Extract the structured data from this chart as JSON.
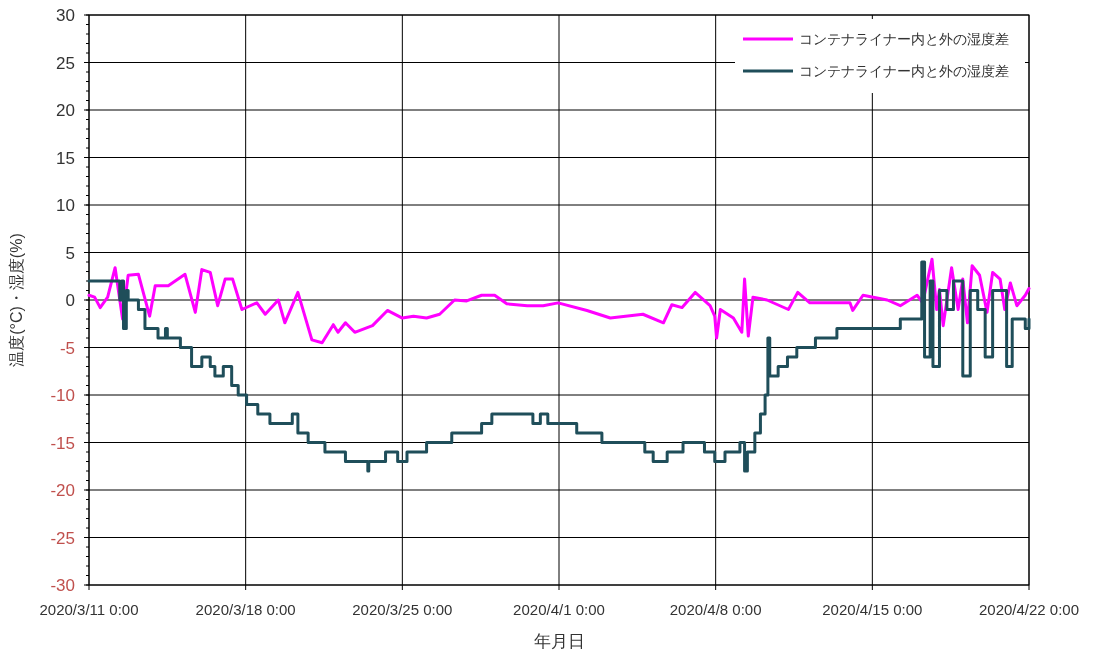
{
  "chart_data": {
    "type": "line",
    "xlabel": "年月日",
    "ylabel": "温度(°C)・湿度(%)",
    "xlim": [
      "2020-03-11T00:00",
      "2020-04-22T00:00"
    ],
    "xticks": [
      {
        "value": "2020-03-11T00:00",
        "label": "2020/3/11 0:00"
      },
      {
        "value": "2020-03-18T00:00",
        "label": "2020/3/18 0:00"
      },
      {
        "value": "2020-03-25T00:00",
        "label": "2020/3/25 0:00"
      },
      {
        "value": "2020-04-01T00:00",
        "label": "2020/4/1 0:00"
      },
      {
        "value": "2020-04-08T00:00",
        "label": "2020/4/8 0:00"
      },
      {
        "value": "2020-04-15T00:00",
        "label": "2020/4/15 0:00"
      },
      {
        "value": "2020-04-22T00:00",
        "label": "2020/4/22 0:00"
      }
    ],
    "ylim": [
      -30,
      30
    ],
    "yticks": [
      -30,
      -25,
      -20,
      -15,
      -10,
      -5,
      0,
      5,
      10,
      15,
      20,
      25,
      30
    ],
    "grid": true,
    "legend": "top right",
    "series": [
      {
        "name": "コンテナライナー内と外の湿度差",
        "type": "line",
        "color": "#ff00ff",
        "x": [
          "2020-03-11T00:00",
          "2020-03-11T06:00",
          "2020-03-11T12:00",
          "2020-03-11T20:00",
          "2020-03-12T04:00",
          "2020-03-12T12:00",
          "2020-03-12T18:00",
          "2020-03-13T05:00",
          "2020-03-13T17:00",
          "2020-03-13T23:00",
          "2020-03-14T13:00",
          "2020-03-15T07:00",
          "2020-03-15T18:00",
          "2020-03-16T01:00",
          "2020-03-16T10:00",
          "2020-03-16T18:00",
          "2020-03-17T02:00",
          "2020-03-17T10:00",
          "2020-03-17T20:00",
          "2020-03-18T12:00",
          "2020-03-18T21:00",
          "2020-03-19T11:00",
          "2020-03-19T18:00",
          "2020-03-20T08:00",
          "2020-03-20T23:00",
          "2020-03-21T10:00",
          "2020-03-21T22:00",
          "2020-03-22T03:00",
          "2020-03-22T11:00",
          "2020-03-22T21:00",
          "2020-03-23T16:00",
          "2020-03-24T08:00",
          "2020-03-25T00:00",
          "2020-03-25T12:00",
          "2020-03-26T02:00",
          "2020-03-26T16:00",
          "2020-03-27T08:00",
          "2020-03-27T21:00",
          "2020-03-28T13:00",
          "2020-03-29T03:00",
          "2020-03-29T16:00",
          "2020-03-30T14:00",
          "2020-03-31T07:00",
          "2020-03-31T23:00",
          "2020-04-02T06:00",
          "2020-04-03T07:00",
          "2020-04-04T18:00",
          "2020-04-05T16:00",
          "2020-04-06T01:00",
          "2020-04-06T12:00",
          "2020-04-07T02:00",
          "2020-04-07T18:00",
          "2020-04-07T23:00",
          "2020-04-08T01:00",
          "2020-04-08T05:00",
          "2020-04-08T19:00",
          "2020-04-09T04:00",
          "2020-04-09T07:00",
          "2020-04-09T11:00",
          "2020-04-09T16:00",
          "2020-04-10T07:00",
          "2020-04-11T06:00",
          "2020-04-11T16:00",
          "2020-04-12T05:00",
          "2020-04-14T00:00",
          "2020-04-14T03:00",
          "2020-04-14T14:00",
          "2020-04-15T16:00",
          "2020-04-16T06:00",
          "2020-04-17T00:00",
          "2020-04-17T06:00",
          "2020-04-17T16:00",
          "2020-04-17T21:00",
          "2020-04-18T00:00",
          "2020-04-18T04:00",
          "2020-04-18T13:00",
          "2020-04-18T20:00",
          "2020-04-19T01:00",
          "2020-04-19T06:00",
          "2020-04-19T11:00",
          "2020-04-19T19:00",
          "2020-04-20T03:00",
          "2020-04-20T09:00",
          "2020-04-20T17:00",
          "2020-04-20T22:00",
          "2020-04-21T04:00",
          "2020-04-21T11:00",
          "2020-04-21T20:00",
          "2020-04-22T00:00"
        ],
        "values": [
          0.5,
          0.3,
          -0.8,
          0.3,
          3.4,
          -2.0,
          2.6,
          2.7,
          -1.7,
          1.5,
          1.5,
          2.7,
          -1.3,
          3.2,
          2.9,
          -0.6,
          2.2,
          2.2,
          -1.0,
          -0.3,
          -1.5,
          0.0,
          -2.4,
          0.8,
          -4.2,
          -4.5,
          -2.6,
          -3.4,
          -2.4,
          -3.4,
          -2.7,
          -1.1,
          -1.9,
          -1.7,
          -1.9,
          -1.5,
          0.0,
          -0.1,
          0.5,
          0.5,
          -0.4,
          -0.6,
          -0.6,
          -0.3,
          -1.1,
          -1.9,
          -1.5,
          -2.4,
          -0.5,
          -0.8,
          0.8,
          -0.6,
          -1.7,
          -4.0,
          -1.0,
          -1.9,
          -3.4,
          2.2,
          -3.8,
          0.3,
          0.0,
          -1.0,
          0.8,
          -0.3,
          -0.3,
          -1.1,
          0.5,
          0.0,
          -0.6,
          0.5,
          -0.3,
          4.3,
          -1.0,
          1.1,
          -2.7,
          3.4,
          -1.0,
          2.2,
          -2.4,
          3.6,
          2.6,
          -1.3,
          2.9,
          2.2,
          -1.0,
          1.8,
          -0.6,
          0.5,
          1.2
        ]
      },
      {
        "name": "コンテナライナー内と外の湿度差",
        "type": "step",
        "color": "#1f4e5a",
        "x": [
          "2020-03-11T00:00",
          "2020-03-12T09:00",
          "2020-03-12T11:00",
          "2020-03-12T13:00",
          "2020-03-12T16:00",
          "2020-03-12T18:00",
          "2020-03-13T05:00",
          "2020-03-13T12:00",
          "2020-03-14T02:00",
          "2020-03-14T10:00",
          "2020-03-14T12:00",
          "2020-03-15T02:00",
          "2020-03-15T14:00",
          "2020-03-16T01:00",
          "2020-03-16T10:00",
          "2020-03-16T15:00",
          "2020-03-17T00:00",
          "2020-03-17T09:00",
          "2020-03-17T16:00",
          "2020-03-18T01:00",
          "2020-03-18T13:00",
          "2020-03-19T02:00",
          "2020-03-20T02:00",
          "2020-03-20T08:00",
          "2020-03-20T19:00",
          "2020-03-21T13:00",
          "2020-03-22T11:00",
          "2020-03-23T11:00",
          "2020-03-23T12:00",
          "2020-03-24T06:00",
          "2020-03-24T19:00",
          "2020-03-25T05:00",
          "2020-03-26T02:00",
          "2020-03-27T05:00",
          "2020-03-28T13:00",
          "2020-03-29T00:00",
          "2020-03-30T20:00",
          "2020-03-31T04:00",
          "2020-03-31T12:00",
          "2020-04-01T19:00",
          "2020-04-02T22:00",
          "2020-04-04T20:00",
          "2020-04-05T05:00",
          "2020-04-05T20:00",
          "2020-04-06T13:00",
          "2020-04-07T12:00",
          "2020-04-07T23:00",
          "2020-04-08T10:00",
          "2020-04-09T02:00",
          "2020-04-09T07:00",
          "2020-04-09T10:00",
          "2020-04-09T18:00",
          "2020-04-10T00:00",
          "2020-04-10T05:00",
          "2020-04-10T08:00",
          "2020-04-10T10:00",
          "2020-04-10T19:00",
          "2020-04-11T05:00",
          "2020-04-11T15:00",
          "2020-04-12T11:00",
          "2020-04-13T10:00",
          "2020-04-16T06:00",
          "2020-04-17T05:00",
          "2020-04-17T08:00",
          "2020-04-17T14:00",
          "2020-04-17T17:00",
          "2020-04-18T00:00",
          "2020-04-18T08:00",
          "2020-04-18T15:00",
          "2020-04-19T01:00",
          "2020-04-19T09:00",
          "2020-04-19T17:00",
          "2020-04-20T01:00",
          "2020-04-20T09:00",
          "2020-04-21T00:00",
          "2020-04-21T06:00",
          "2020-04-21T20:00",
          "2020-04-22T00:00"
        ],
        "values": [
          2,
          0,
          2,
          -3,
          1,
          0,
          -1,
          -3,
          -4,
          -3,
          -4,
          -5,
          -7,
          -6,
          -7,
          -8,
          -7,
          -9,
          -10,
          -11,
          -12,
          -13,
          -12,
          -14,
          -15,
          -16,
          -17,
          -18,
          -17,
          -16,
          -17,
          -16,
          -15,
          -14,
          -13,
          -12,
          -13,
          -12,
          -13,
          -14,
          -15,
          -16,
          -17,
          -16,
          -15,
          -16,
          -17,
          -16,
          -15,
          -18,
          -16,
          -14,
          -12,
          -10,
          -4,
          -8,
          -7,
          -6,
          -5,
          -4,
          -3,
          -2,
          4,
          -6,
          2,
          -7,
          1,
          -1,
          2,
          -8,
          1,
          -1,
          -6,
          1,
          -7,
          -2,
          -3,
          -2
        ]
      }
    ]
  }
}
